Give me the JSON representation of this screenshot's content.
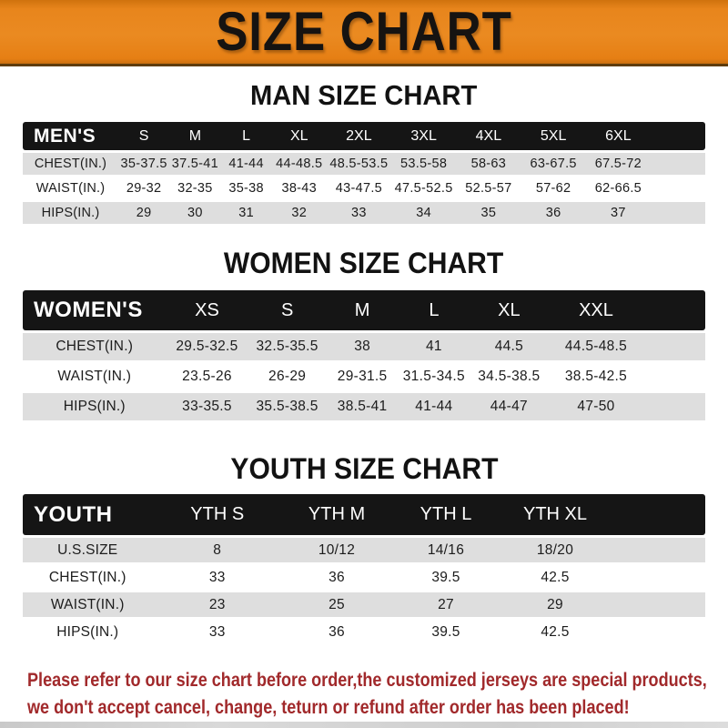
{
  "banner": {
    "title": "SIZE CHART",
    "bg_color": "#E8851C"
  },
  "sections": [
    {
      "heading": "MAN SIZE CHART",
      "group_label": "MEN'S",
      "columns": [
        "S",
        "M",
        "L",
        "XL",
        "2XL",
        "3XL",
        "4XL",
        "5XL",
        "6XL"
      ],
      "rows": [
        {
          "label": "CHEST(IN.)",
          "values": [
            "35-37.5",
            "37.5-41",
            "41-44",
            "44-48.5",
            "48.5-53.5",
            "53.5-58",
            "58-63",
            "63-67.5",
            "67.5-72"
          ]
        },
        {
          "label": "WAIST(IN.)",
          "values": [
            "29-32",
            "32-35",
            "35-38",
            "38-43",
            "43-47.5",
            "47.5-52.5",
            "52.5-57",
            "57-62",
            "62-66.5"
          ]
        },
        {
          "label": "HIPS(IN.)",
          "values": [
            "29",
            "30",
            "31",
            "32",
            "33",
            "34",
            "35",
            "36",
            "37"
          ]
        }
      ]
    },
    {
      "heading": "WOMEN SIZE CHART",
      "group_label": "WOMEN'S",
      "columns": [
        "XS",
        "S",
        "M",
        "L",
        "XL",
        "XXL"
      ],
      "rows": [
        {
          "label": "CHEST(IN.)",
          "values": [
            "29.5-32.5",
            "32.5-35.5",
            "38",
            "41",
            "44.5",
            "44.5-48.5"
          ]
        },
        {
          "label": "WAIST(IN.)",
          "values": [
            "23.5-26",
            "26-29",
            "29-31.5",
            "31.5-34.5",
            "34.5-38.5",
            "38.5-42.5"
          ]
        },
        {
          "label": "HIPS(IN.)",
          "values": [
            "33-35.5",
            "35.5-38.5",
            "38.5-41",
            "41-44",
            "44-47",
            "47-50"
          ]
        }
      ]
    },
    {
      "heading": "YOUTH SIZE CHART",
      "group_label": "YOUTH",
      "columns": [
        "YTH S",
        "YTH M",
        "YTH L",
        "YTH XL"
      ],
      "rows": [
        {
          "label": "U.S.SIZE",
          "values": [
            "8",
            "10/12",
            "14/16",
            "18/20"
          ]
        },
        {
          "label": "CHEST(IN.)",
          "values": [
            "33",
            "36",
            "39.5",
            "42.5"
          ]
        },
        {
          "label": "WAIST(IN.)",
          "values": [
            "23",
            "25",
            "27",
            "29"
          ]
        },
        {
          "label": "HIPS(IN.)",
          "values": [
            "33",
            "36",
            "39.5",
            "42.5"
          ]
        }
      ]
    }
  ],
  "footer": {
    "line1": "Please refer to our size chart before order,the customized jerseys are special products,",
    "line2": "we don't accept cancel, change, teturn or refund after order has been placed!",
    "text_color": "#A1292B"
  }
}
